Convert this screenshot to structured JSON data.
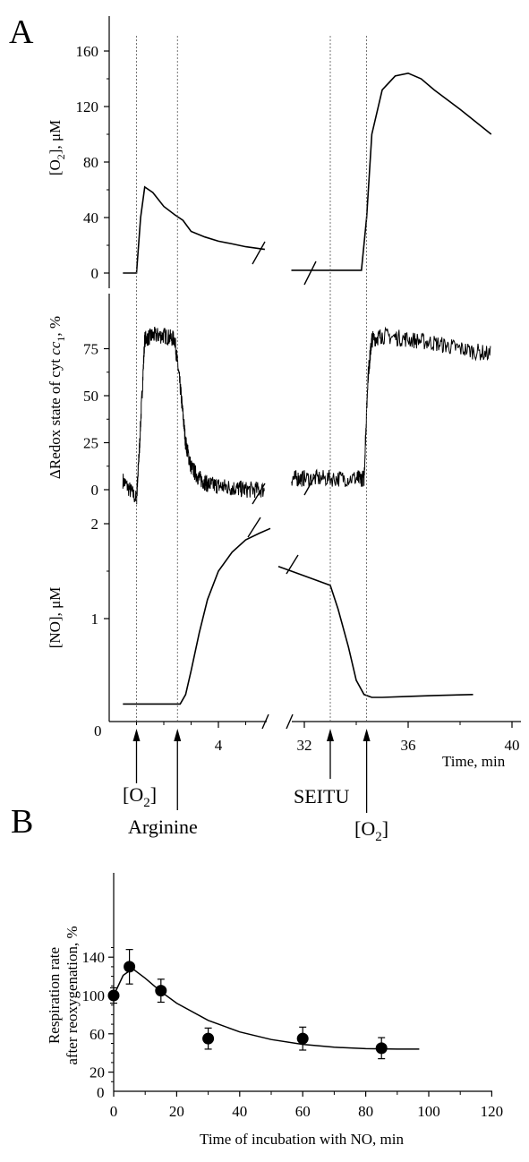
{
  "panel_a_letter": "A",
  "panel_b_letter": "B",
  "chart_data": [
    {
      "type": "line",
      "panel": "A",
      "ylabel": "[O2], μM",
      "ylabel_base": "[O",
      "ylabel_sub": "2",
      "ylabel_rest": "], μM",
      "yticks": [
        0,
        40,
        80,
        120,
        160
      ],
      "ylim": [
        0,
        180
      ],
      "series": [
        {
          "x": [
            0.5,
            1.0,
            1.15,
            1.3,
            1.6,
            2.0,
            2.4,
            2.7,
            3.0,
            3.5,
            4.0,
            4.5,
            5.0,
            5.7
          ],
          "y": [
            0,
            0,
            40,
            62,
            58,
            48,
            42,
            38,
            30,
            26,
            23,
            21,
            19,
            17
          ]
        },
        {
          "x": [
            31.5,
            32.0,
            33.0,
            34.0,
            34.2,
            34.4,
            34.6,
            35.0,
            35.5,
            36.0,
            36.5,
            37.0,
            38.0,
            39.2
          ],
          "y": [
            2,
            2,
            2,
            2,
            2,
            40,
            100,
            132,
            142,
            144,
            140,
            132,
            118,
            100
          ]
        }
      ]
    },
    {
      "type": "line",
      "panel": "A",
      "ylabel": "ΔRedox state of cyt cc1, %",
      "ylabel_base": "ΔRedox state of cyt ",
      "ylabel_italic": "cc",
      "ylabel_sub": "1",
      "ylabel_rest": ", %",
      "yticks": [
        0,
        25,
        50,
        75
      ],
      "ylim": [
        -10,
        95
      ],
      "series": [
        {
          "x": [
            0.5,
            1.0,
            1.1,
            1.3,
            1.6,
            2.0,
            2.4,
            2.6,
            2.8,
            3.0,
            3.3,
            3.6,
            4.0,
            4.5,
            5.0,
            5.7
          ],
          "y": [
            5,
            -5,
            20,
            80,
            82,
            82,
            80,
            55,
            25,
            12,
            6,
            3,
            2,
            1,
            0,
            0
          ]
        },
        {
          "x": [
            31.5,
            32.0,
            33.0,
            34.0,
            34.3,
            34.45,
            34.6,
            35.0,
            36.0,
            37.0,
            38.0,
            39.2
          ],
          "y": [
            6,
            6,
            6,
            6,
            6,
            60,
            80,
            82,
            80,
            78,
            75,
            72
          ]
        }
      ]
    },
    {
      "type": "line",
      "panel": "A",
      "ylabel": "[NO], μM",
      "yticks": [
        1,
        2
      ],
      "ylim": [
        0,
        2
      ],
      "xlabel": "Time, min",
      "xticks": [
        4,
        32,
        36,
        40
      ],
      "series": [
        {
          "x": [
            0.5,
            1.0,
            2.0,
            2.6,
            2.8,
            3.0,
            3.3,
            3.6,
            4.0,
            4.5,
            5.0,
            5.5,
            5.9
          ],
          "y": [
            0.1,
            0.1,
            0.1,
            0.1,
            0.2,
            0.45,
            0.85,
            1.2,
            1.5,
            1.7,
            1.83,
            1.9,
            1.95
          ]
        },
        {
          "x": [
            31.0,
            32.0,
            33.0,
            33.3,
            33.7,
            34.0,
            34.3,
            34.6,
            35.0,
            36.0,
            37.0,
            38.5
          ],
          "y": [
            1.55,
            1.45,
            1.35,
            1.1,
            0.7,
            0.35,
            0.2,
            0.17,
            0.17,
            0.18,
            0.19,
            0.2
          ]
        }
      ]
    },
    {
      "type": "scatter",
      "panel": "B",
      "xlabel": "Time of incubation with NO, min",
      "ylabel": "Respiration rate after reoxygenation, %",
      "ylabel_line1": "Respiration rate",
      "ylabel_line2": "after reoxygenation, %",
      "xlim": [
        0,
        120
      ],
      "ylim": [
        0,
        150
      ],
      "xticks": [
        0,
        20,
        40,
        60,
        80,
        100,
        120
      ],
      "yticks": [
        20,
        60,
        100,
        140
      ],
      "points": [
        {
          "x": 0,
          "y": 100,
          "err": 8
        },
        {
          "x": 5,
          "y": 130,
          "err": 18
        },
        {
          "x": 15,
          "y": 105,
          "err": 12
        },
        {
          "x": 30,
          "y": 55,
          "err": 11
        },
        {
          "x": 60,
          "y": 55,
          "err": 12
        },
        {
          "x": 85,
          "y": 45,
          "err": 11
        }
      ],
      "fit": {
        "x": [
          0,
          3,
          6,
          10,
          15,
          20,
          30,
          40,
          50,
          60,
          70,
          80,
          90,
          97
        ],
        "y": [
          100,
          121,
          128,
          118,
          104,
          92,
          74,
          62,
          54,
          49,
          46,
          44.5,
          44,
          44
        ]
      }
    }
  ],
  "markers": {
    "o2_first": "[O",
    "o2_sub": "2",
    "o2_close": "]",
    "arginine": "Arginine",
    "seitu": "SEITU",
    "o2_second": "[O",
    "o2_second_sub": "2",
    "o2_second_close": "]",
    "x_positions": [
      1.0,
      2.5,
      33.0,
      34.4
    ]
  }
}
